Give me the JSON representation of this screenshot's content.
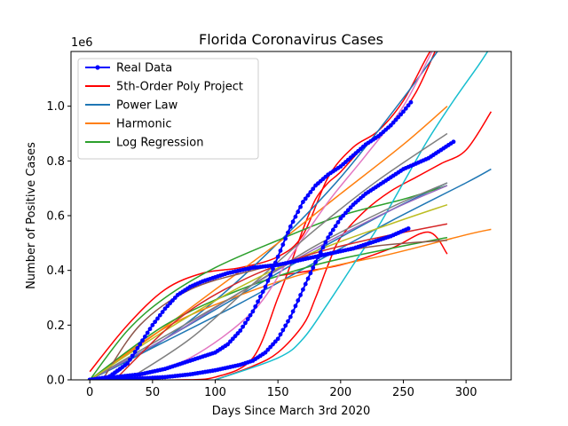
{
  "chart_data": {
    "type": "line",
    "title": "Florida Coronavirus Cases",
    "xlabel": "Days Since March 3rd 2020",
    "ylabel": "Number of Positive Cases",
    "y_offset_text": "1e6",
    "xlim": [
      -15,
      336
    ],
    "ylim": [
      0,
      1.2
    ],
    "x_ticks": [
      0,
      50,
      100,
      150,
      200,
      250,
      300
    ],
    "x_tick_labels": [
      "0",
      "50",
      "100",
      "150",
      "200",
      "250",
      "300"
    ],
    "y_ticks": [
      0,
      0.2,
      0.4,
      0.6,
      0.8,
      1.0
    ],
    "y_tick_labels": [
      "0.0",
      "0.2",
      "0.4",
      "0.6",
      "0.8",
      "1.0"
    ],
    "grid": false,
    "legend_position": "top-left",
    "legend": [
      {
        "name": "Real Data",
        "color": "#0000ff",
        "marker": true
      },
      {
        "name": "5th-Order Poly Project",
        "color": "#ff0000",
        "marker": false
      },
      {
        "name": "Power Law",
        "color": "#1f77b4",
        "marker": false
      },
      {
        "name": "Harmonic",
        "color": "#ff7f0e",
        "marker": false
      },
      {
        "name": "Log Regression",
        "color": "#2ca02c",
        "marker": false
      }
    ],
    "series": [
      {
        "name": "Real Data",
        "color": "#0000ff",
        "marker": true,
        "x": [
          0,
          15,
          30,
          40,
          50,
          60,
          70,
          80,
          90,
          100,
          110,
          120,
          130,
          140,
          150,
          160,
          170,
          180,
          190,
          200,
          210,
          220,
          230,
          240,
          250,
          255
        ],
        "y": [
          0,
          0.01,
          0.06,
          0.13,
          0.2,
          0.26,
          0.31,
          0.34,
          0.36,
          0.375,
          0.39,
          0.4,
          0.41,
          0.415,
          0.42,
          0.43,
          0.44,
          0.45,
          0.46,
          0.47,
          0.48,
          0.495,
          0.51,
          0.525,
          0.545,
          0.555
        ]
      },
      {
        "color": "#0000ff",
        "marker": true,
        "x": [
          0,
          20,
          40,
          60,
          80,
          100,
          110,
          120,
          130,
          140,
          150,
          160,
          170,
          180,
          190,
          200,
          210,
          220,
          230,
          240,
          250,
          257
        ],
        "y": [
          0,
          0.01,
          0.02,
          0.04,
          0.07,
          0.1,
          0.13,
          0.18,
          0.25,
          0.34,
          0.45,
          0.56,
          0.65,
          0.71,
          0.75,
          0.78,
          0.82,
          0.86,
          0.89,
          0.93,
          0.98,
          1.02
        ]
      },
      {
        "color": "#0000ff",
        "marker": true,
        "x": [
          0,
          20,
          40,
          60,
          80,
          100,
          110,
          120,
          130,
          140,
          150,
          160,
          170,
          180,
          190,
          200,
          210,
          220,
          230,
          240,
          250,
          260,
          270,
          280,
          290
        ],
        "y": [
          0,
          0.002,
          0.005,
          0.01,
          0.02,
          0.035,
          0.045,
          0.055,
          0.07,
          0.1,
          0.15,
          0.23,
          0.33,
          0.43,
          0.52,
          0.59,
          0.64,
          0.68,
          0.71,
          0.74,
          0.77,
          0.79,
          0.81,
          0.84,
          0.87
        ]
      },
      {
        "color": "#ff0000",
        "x": [
          0,
          30,
          60,
          90,
          120,
          150,
          170,
          190,
          210,
          230,
          250,
          270,
          280
        ],
        "y": [
          0.03,
          0.2,
          0.33,
          0.39,
          0.41,
          0.45,
          0.53,
          0.74,
          0.85,
          0.91,
          1.02,
          1.19,
          1.25
        ]
      },
      {
        "color": "#ff0000",
        "x": [
          40,
          70,
          100,
          130,
          150,
          160,
          170,
          180,
          190,
          200,
          220,
          240,
          260,
          280
        ],
        "y": [
          0,
          0,
          0.01,
          0.08,
          0.3,
          0.42,
          0.55,
          0.66,
          0.72,
          0.76,
          0.86,
          0.93,
          1.05,
          1.25
        ]
      },
      {
        "color": "#ff0000",
        "x": [
          100,
          130,
          150,
          170,
          180,
          190,
          200,
          220,
          240,
          260,
          280,
          300,
          320
        ],
        "y": [
          0,
          0.05,
          0.1,
          0.2,
          0.3,
          0.42,
          0.52,
          0.62,
          0.69,
          0.74,
          0.79,
          0.84,
          0.98
        ]
      },
      {
        "color": "#ff0000",
        "x": [
          150,
          200,
          240,
          270,
          285
        ],
        "y": [
          0.38,
          0.42,
          0.48,
          0.54,
          0.46
        ]
      },
      {
        "color": "#1f77b4",
        "x": [
          0,
          50,
          100,
          150,
          200,
          250,
          285
        ],
        "y": [
          0,
          0.12,
          0.29,
          0.5,
          0.74,
          1.03,
          1.25
        ]
      },
      {
        "color": "#1f77b4",
        "x": [
          0,
          60,
          120,
          180,
          240,
          285
        ],
        "y": [
          0,
          0.15,
          0.31,
          0.47,
          0.62,
          0.72
        ]
      },
      {
        "color": "#1f77b4",
        "x": [
          0,
          60,
          120,
          180,
          240,
          300,
          320
        ],
        "y": [
          0,
          0.14,
          0.28,
          0.43,
          0.58,
          0.72,
          0.77
        ]
      },
      {
        "color": "#ff7f0e",
        "x": [
          0,
          50,
          100,
          150,
          200,
          250,
          285
        ],
        "y": [
          0,
          0.16,
          0.33,
          0.5,
          0.68,
          0.86,
          1.0
        ]
      },
      {
        "color": "#ff7f0e",
        "x": [
          0,
          60,
          120,
          180,
          240,
          300,
          320
        ],
        "y": [
          0,
          0.19,
          0.31,
          0.4,
          0.46,
          0.53,
          0.55
        ]
      },
      {
        "color": "#2ca02c",
        "x": [
          0,
          30,
          60,
          100,
          150,
          200,
          250,
          285
        ],
        "y": [
          0,
          0.18,
          0.3,
          0.41,
          0.51,
          0.6,
          0.66,
          0.71
        ]
      },
      {
        "color": "#2ca02c",
        "x": [
          0,
          60,
          120,
          180,
          240,
          285
        ],
        "y": [
          0,
          0.2,
          0.33,
          0.42,
          0.48,
          0.52
        ]
      },
      {
        "color": "#17becf",
        "x": [
          100,
          150,
          170,
          190,
          210,
          230,
          250,
          270,
          290,
          310,
          320
        ],
        "y": [
          0,
          0.08,
          0.15,
          0.28,
          0.42,
          0.56,
          0.72,
          0.88,
          1.02,
          1.15,
          1.22
        ]
      },
      {
        "color": "#e377c2",
        "x": [
          30,
          80,
          130,
          160,
          190,
          220,
          250,
          275
        ],
        "y": [
          0,
          0.08,
          0.25,
          0.45,
          0.65,
          0.82,
          1.0,
          1.22
        ]
      },
      {
        "color": "#9467bd",
        "x": [
          0,
          60,
          120,
          180,
          240,
          285
        ],
        "y": [
          0,
          0.15,
          0.32,
          0.48,
          0.62,
          0.71
        ]
      },
      {
        "color": "#8c564b",
        "x": [
          10,
          40,
          80,
          130,
          180,
          230,
          285
        ],
        "y": [
          0,
          0.2,
          0.33,
          0.4,
          0.45,
          0.49,
          0.51
        ]
      },
      {
        "color": "#7f7f7f",
        "x": [
          30,
          80,
          130,
          180,
          230,
          285
        ],
        "y": [
          0,
          0.15,
          0.35,
          0.55,
          0.73,
          0.9
        ]
      },
      {
        "color": "#7f7f7f",
        "x": [
          0,
          60,
          120,
          180,
          240,
          285
        ],
        "y": [
          0,
          0.16,
          0.32,
          0.49,
          0.63,
          0.72
        ]
      },
      {
        "color": "#bcbd22",
        "x": [
          0,
          60,
          120,
          180,
          240,
          285
        ],
        "y": [
          0,
          0.18,
          0.34,
          0.47,
          0.57,
          0.64
        ]
      },
      {
        "color": "#d62728",
        "x": [
          20,
          70,
          120,
          170,
          220,
          285
        ],
        "y": [
          0,
          0.22,
          0.36,
          0.45,
          0.51,
          0.57
        ]
      }
    ]
  }
}
